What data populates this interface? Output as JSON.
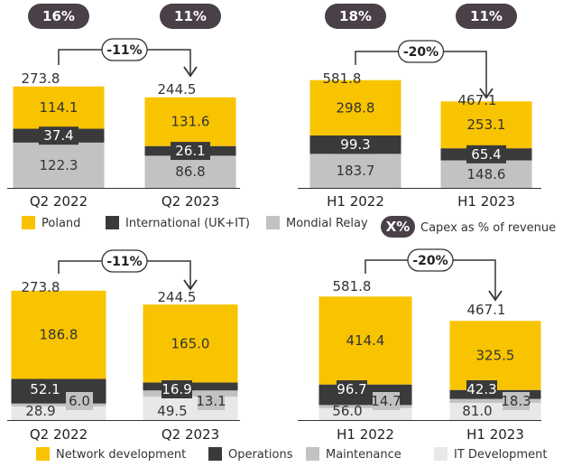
{
  "colors": {
    "yellow": "#f8c400",
    "dark": "#3a3a3a",
    "gray": "#c2c2c2",
    "light": "#e8e8e8",
    "pill": "#4a4048"
  },
  "legend_top": {
    "items": [
      {
        "label": "Poland",
        "color": "#f8c400"
      },
      {
        "label": "International (UK+IT)",
        "color": "#3a3a3a"
      },
      {
        "label": "Mondial Relay",
        "color": "#c2c2c2"
      }
    ],
    "pill_label": "X%",
    "pill_desc": "Capex as % of revenue"
  },
  "legend_bottom": {
    "items": [
      {
        "label": "Network development",
        "color": "#f8c400"
      },
      {
        "label": "Operations",
        "color": "#3a3a3a"
      },
      {
        "label": "Maintenance",
        "color": "#c2c2c2"
      },
      {
        "label": "IT Development",
        "color": "#e8e8e8"
      }
    ]
  },
  "chart_data": [
    {
      "type": "bar",
      "stacked": true,
      "categories": [
        "Q2 2022",
        "Q2 2023"
      ],
      "totals": [
        "273.8",
        "244.5"
      ],
      "pct_of_revenue": [
        "16%",
        "11%"
      ],
      "change": "-11%",
      "series": [
        {
          "name": "Mondial Relay",
          "values": [
            122.3,
            86.8
          ]
        },
        {
          "name": "International (UK+IT)",
          "values": [
            37.4,
            26.1
          ]
        },
        {
          "name": "Poland",
          "values": [
            114.1,
            131.6
          ]
        }
      ]
    },
    {
      "type": "bar",
      "stacked": true,
      "categories": [
        "H1 2022",
        "H1 2023"
      ],
      "totals": [
        "581.8",
        "467.1"
      ],
      "pct_of_revenue": [
        "18%",
        "11%"
      ],
      "change": "-20%",
      "series": [
        {
          "name": "Mondial Relay",
          "values": [
            183.7,
            148.6
          ]
        },
        {
          "name": "International (UK+IT)",
          "values": [
            99.3,
            65.4
          ]
        },
        {
          "name": "Poland",
          "values": [
            298.8,
            253.1
          ]
        }
      ]
    },
    {
      "type": "bar",
      "stacked": true,
      "categories": [
        "Q2 2022",
        "Q2 2023"
      ],
      "totals": [
        "273.8",
        "244.5"
      ],
      "change": "-11%",
      "series": [
        {
          "name": "IT Development",
          "values": [
            28.9,
            49.5
          ]
        },
        {
          "name": "Maintenance",
          "values": [
            6.0,
            13.1
          ]
        },
        {
          "name": "Operations",
          "values": [
            52.1,
            16.9
          ]
        },
        {
          "name": "Network development",
          "values": [
            186.8,
            165.0
          ]
        }
      ]
    },
    {
      "type": "bar",
      "stacked": true,
      "categories": [
        "H1 2022",
        "H1 2023"
      ],
      "totals": [
        "581.8",
        "467.1"
      ],
      "change": "-20%",
      "series": [
        {
          "name": "IT Development",
          "values": [
            56.0,
            81.0
          ]
        },
        {
          "name": "Maintenance",
          "values": [
            14.7,
            18.3
          ]
        },
        {
          "name": "Operations",
          "values": [
            96.7,
            42.3
          ]
        },
        {
          "name": "Network development",
          "values": [
            414.4,
            325.5
          ]
        }
      ]
    }
  ]
}
